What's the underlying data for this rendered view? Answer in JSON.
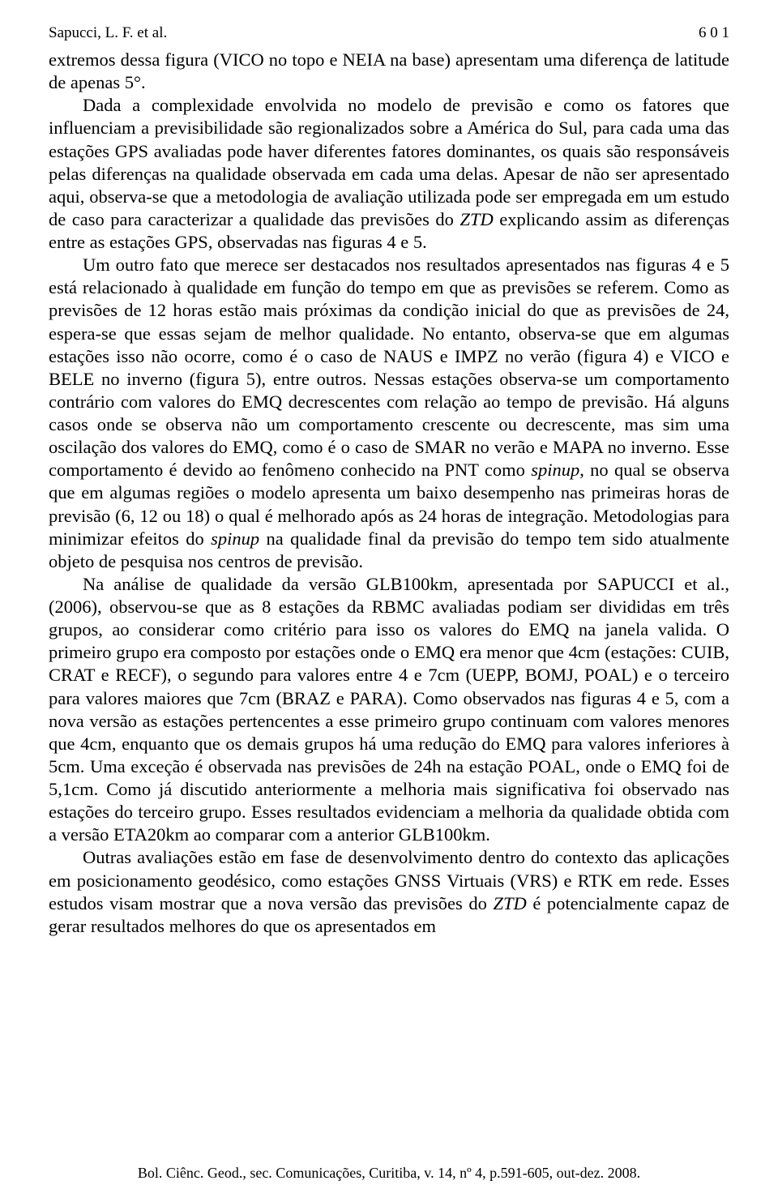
{
  "header": {
    "author": "Sapucci, L. F. et al.",
    "page_number": "6 0 1"
  },
  "paragraphs": {
    "p1_a": "extremos dessa figura (VICO no topo e NEIA na base) apresentam uma diferença de latitude de apenas 5°.",
    "p2_a": "Dada a complexidade envolvida no modelo de previsão e como os fatores que influenciam a previsibilidade são regionalizados sobre a América do Sul, para cada uma das estações GPS avaliadas pode haver diferentes fatores dominantes, os quais são responsáveis pelas diferenças na qualidade observada em cada uma delas. Apesar de não ser apresentado aqui, observa-se que a metodologia de avaliação utilizada pode ser empregada em um estudo de caso para caracterizar a qualidade das previsões do ",
    "p2_ztd": "ZTD",
    "p2_b": " explicando assim as diferenças entre as estações GPS, observadas nas figuras 4 e 5.",
    "p3_a": "Um outro fato que merece ser destacados nos resultados apresentados nas figuras 4 e 5 está relacionado à qualidade em função do tempo em que as previsões se referem. Como as previsões de 12 horas estão mais próximas da condição inicial do que as previsões de 24, espera-se que essas sejam de melhor qualidade. No entanto, observa-se que em algumas estações isso não ocorre, como é o caso de NAUS e IMPZ no verão (figura 4) e VICO e BELE no inverno (figura 5), entre outros. Nessas estações observa-se um comportamento contrário com valores do EMQ decrescentes com relação ao tempo de previsão. Há alguns casos onde se observa não um comportamento crescente ou decrescente, mas sim uma oscilação dos valores do EMQ, como é o caso de SMAR no verão e MAPA no inverno. Esse comportamento é devido ao fenômeno conhecido na PNT como ",
    "p3_spinup1": "spinup",
    "p3_b": ", no qual se observa que em algumas regiões o modelo apresenta um baixo desempenho nas primeiras horas de previsão (6, 12 ou 18) o qual é melhorado após as 24 horas de integração. Metodologias para minimizar efeitos do ",
    "p3_spinup2": "spinup",
    "p3_c": " na qualidade final da previsão do tempo tem sido atualmente objeto de pesquisa nos centros de previsão.",
    "p4_a": "Na análise de qualidade da versão GLB100km, apresentada por SAPUCCI et al., (2006), observou-se que as 8 estações da RBMC avaliadas podiam ser divididas em três grupos, ao considerar como critério para isso os valores do EMQ na janela valida. O primeiro grupo era composto por estações onde o EMQ era menor que 4cm (estações: CUIB, CRAT e RECF), o segundo para valores entre 4 e 7cm (UEPP, BOMJ, POAL) e o terceiro para valores maiores que 7cm (BRAZ e PARA). Como observados nas figuras 4 e 5, com a nova versão as estações pertencentes a esse primeiro grupo continuam com valores menores que 4cm, enquanto que os demais grupos há uma redução do EMQ para valores inferiores à 5cm. Uma exceção é observada nas previsões de 24h na estação POAL, onde o EMQ foi de 5,1cm. Como já discutido anteriormente a melhoria mais significativa foi observado nas estações do terceiro grupo. Esses resultados evidenciam a melhoria da qualidade obtida com a versão ETA20km ao comparar com a anterior GLB100km.",
    "p5_a": "Outras avaliações estão em fase de desenvolvimento dentro do contexto das aplicações em posicionamento geodésico, como estações GNSS Virtuais (VRS) e RTK em rede. Esses estudos visam mostrar que a nova versão das previsões do ",
    "p5_ztd": "ZTD",
    "p5_b": " é potencialmente capaz de gerar resultados melhores do que os apresentados em"
  },
  "footer": {
    "text": "Bol. Ciênc. Geod., sec. Comunicações, Curitiba, v. 14, nº 4, p.591-605, out-dez. 2008."
  }
}
